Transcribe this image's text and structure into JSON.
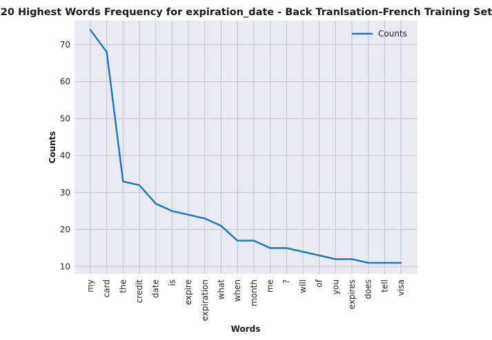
{
  "chart_data": {
    "type": "line",
    "title": "20 Highest Words Frequency for expiration_date - Back Tranlsation-French Training Set",
    "xlabel": "Words",
    "ylabel": "Counts",
    "categories": [
      "my",
      "card",
      "the",
      "credit",
      "date",
      "is",
      "expire",
      "expiration",
      "what",
      "when",
      "month",
      "me",
      "?",
      "will",
      "of",
      "you",
      "expires",
      "does",
      "tell",
      "visa"
    ],
    "series": [
      {
        "name": "Counts",
        "values": [
          74,
          68,
          33,
          32,
          27,
          25,
          24,
          23,
          21,
          17,
          17,
          15,
          15,
          14,
          13,
          12,
          12,
          11,
          11,
          11
        ],
        "color": "#1f77b4"
      }
    ],
    "ylim": [
      8,
      76.5
    ],
    "yticks": [
      10,
      20,
      30,
      40,
      50,
      60,
      70
    ],
    "grid": true,
    "legend": "top-right",
    "colors": {
      "background": "#eaeaf2",
      "grid": "#c3c3c8"
    }
  }
}
